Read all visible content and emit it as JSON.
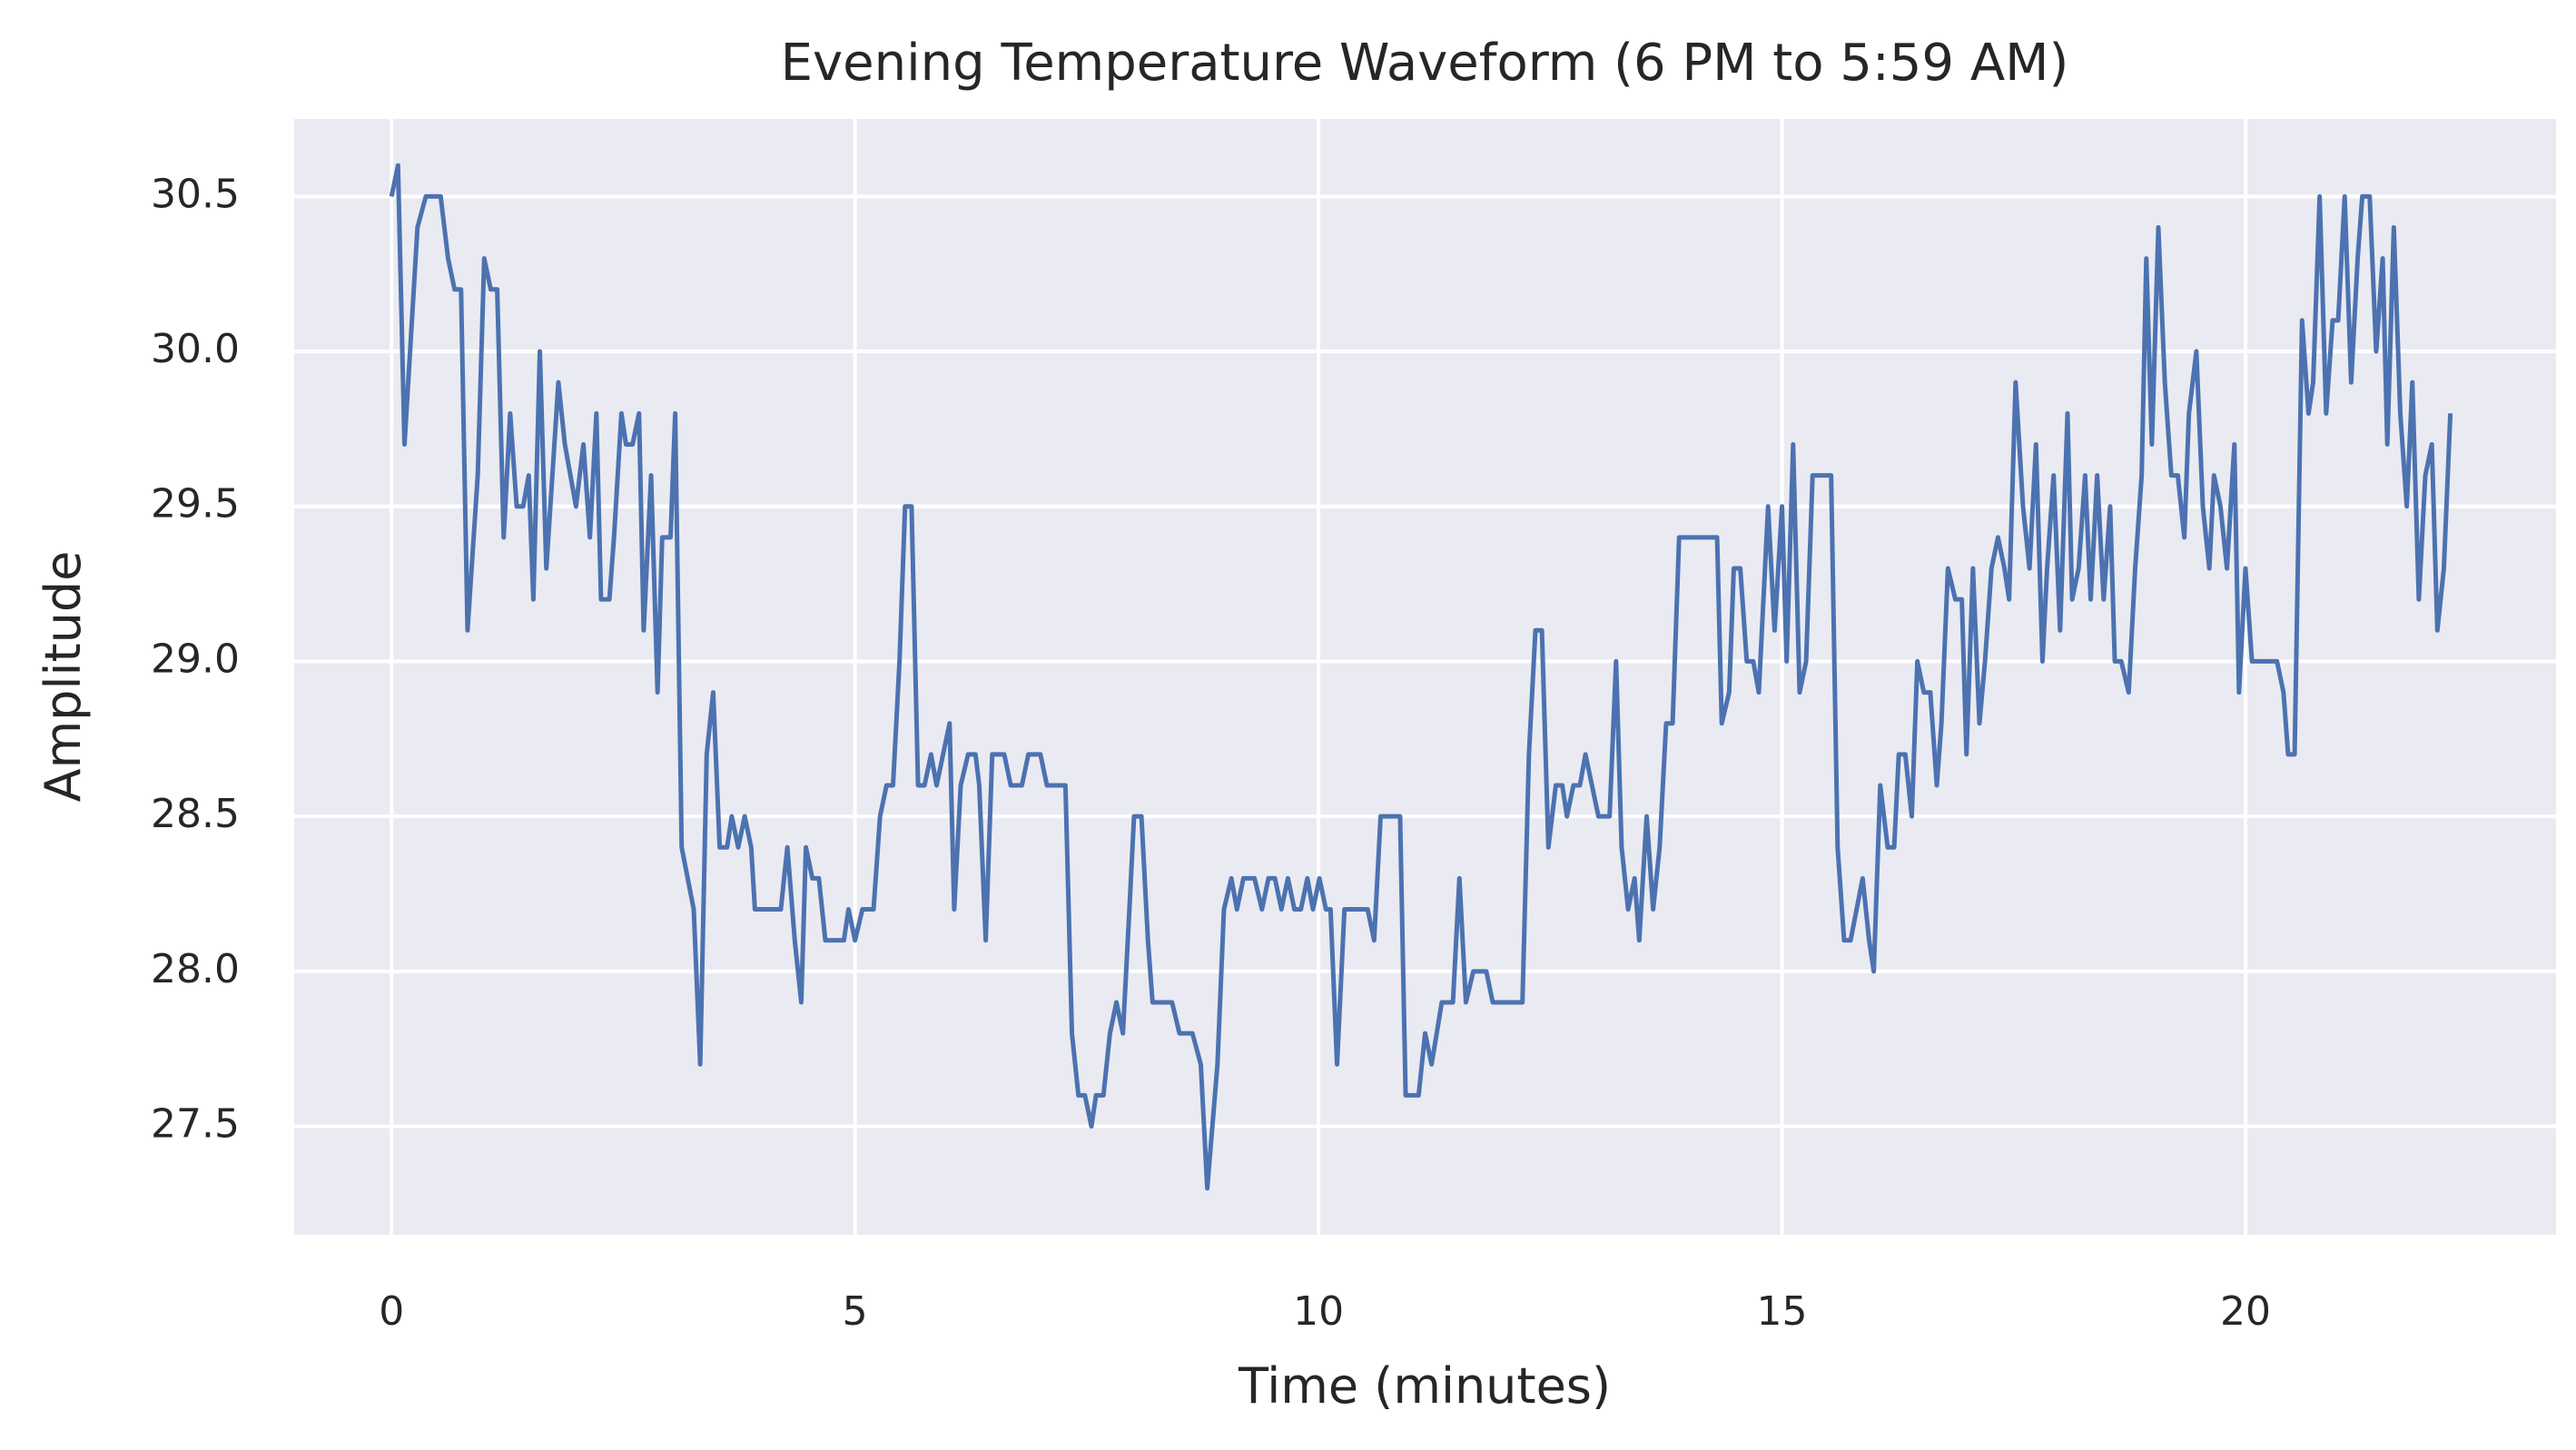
{
  "chart_data": {
    "type": "line",
    "title": "Evening Temperature Waveform (6 PM to 5:59 AM)",
    "xlabel": "Time (minutes)",
    "ylabel": "Amplitude",
    "xlim": [
      -1.05,
      23.35
    ],
    "ylim": [
      27.15,
      30.75
    ],
    "xticks": [
      0,
      5,
      10,
      15,
      20
    ],
    "yticks": [
      27.5,
      {
        "value": 28.0,
        "label": "28.0"
      },
      28.5,
      {
        "value": 29.0,
        "label": "29.0"
      },
      29.5,
      {
        "value": 30.0,
        "label": "30.0"
      },
      30.5
    ],
    "grid": true,
    "series": [
      {
        "color": "#4c72b0",
        "x": [
          0,
          0.07,
          0.14,
          0.28,
          0.37,
          0.53,
          0.61,
          0.68,
          0.75,
          0.82,
          0.93,
          1.0,
          1.07,
          1.14,
          1.21,
          1.28,
          1.35,
          1.42,
          1.48,
          1.53,
          1.6,
          1.67,
          1.8,
          1.87,
          1.99,
          2.07,
          2.14,
          2.21,
          2.26,
          2.35,
          2.4,
          2.48,
          2.53,
          2.6,
          2.67,
          2.72,
          2.8,
          2.87,
          2.92,
          3.01,
          3.06,
          3.13,
          3.26,
          3.33,
          3.4,
          3.47,
          3.54,
          3.62,
          3.67,
          3.74,
          3.81,
          3.88,
          3.92,
          4.06,
          4.2,
          4.27,
          4.35,
          4.42,
          4.47,
          4.54,
          4.61,
          4.68,
          4.88,
          4.93,
          5.0,
          5.08,
          5.2,
          5.27,
          5.34,
          5.41,
          5.48,
          5.54,
          5.61,
          5.68,
          5.75,
          5.82,
          5.88,
          5.95,
          6.02,
          6.07,
          6.14,
          6.22,
          6.3,
          6.34,
          6.41,
          6.48,
          6.61,
          6.68,
          6.8,
          6.87,
          7.0,
          7.07,
          7.27,
          7.34,
          7.41,
          7.48,
          7.55,
          7.6,
          7.68,
          7.75,
          7.82,
          7.89,
          7.96,
          8.01,
          8.09,
          8.16,
          8.21,
          8.42,
          8.5,
          8.64,
          8.73,
          8.8,
          8.91,
          8.98,
          9.06,
          9.12,
          9.19,
          9.31,
          9.39,
          9.46,
          9.53,
          9.6,
          9.67,
          9.74,
          9.81,
          9.88,
          9.94,
          10.01,
          10.08,
          10.13,
          10.2,
          10.28,
          10.53,
          10.6,
          10.67,
          10.88,
          10.94,
          11.08,
          11.15,
          11.22,
          11.33,
          11.45,
          11.52,
          11.59,
          11.67,
          11.81,
          11.88,
          12.2,
          12.27,
          12.34,
          12.41,
          12.48,
          12.56,
          12.63,
          12.68,
          12.75,
          12.82,
          12.88,
          12.95,
          13.02,
          13.14,
          13.21,
          13.27,
          13.34,
          13.41,
          13.46,
          13.54,
          13.61,
          13.68,
          13.75,
          13.82,
          13.89,
          14.3,
          14.35,
          14.43,
          14.48,
          14.55,
          14.62,
          14.69,
          14.75,
          14.85,
          14.92,
          15.0,
          15.05,
          15.12,
          15.19,
          15.26,
          15.33,
          15.53,
          15.6,
          15.67,
          15.74,
          15.87,
          15.94,
          15.99,
          16.06,
          16.14,
          16.21,
          16.26,
          16.33,
          16.4,
          16.46,
          16.53,
          16.6,
          16.67,
          16.72,
          16.79,
          16.87,
          16.94,
          16.99,
          17.06,
          17.13,
          17.19,
          17.26,
          17.33,
          17.4,
          17.45,
          17.52,
          17.6,
          17.67,
          17.74,
          17.81,
          17.86,
          17.93,
          18.0,
          18.08,
          18.13,
          18.2,
          18.27,
          18.33,
          18.4,
          18.47,
          18.54,
          18.59,
          18.66,
          18.74,
          18.81,
          18.88,
          18.93,
          18.99,
          19.06,
          19.13,
          19.2,
          19.27,
          19.34,
          19.39,
          19.47,
          19.54,
          19.61,
          19.66,
          19.73,
          19.8,
          19.88,
          19.93,
          20.0,
          20.07,
          20.34,
          20.41,
          20.46,
          20.53,
          20.61,
          20.68,
          20.73,
          20.8,
          20.87,
          20.94,
          21.0,
          21.07,
          21.14,
          21.21,
          21.26,
          21.34,
          21.41,
          21.48,
          21.53,
          21.6,
          21.67,
          21.74,
          21.8,
          21.87,
          21.94,
          22.01,
          22.07,
          22.14,
          22.21
        ],
        "values": [
          30.5,
          30.6,
          29.7,
          30.4,
          30.5,
          30.5,
          30.3,
          30.2,
          30.2,
          29.1,
          29.6,
          30.3,
          30.2,
          30.2,
          29.4,
          29.8,
          29.5,
          29.5,
          29.6,
          29.2,
          30.0,
          29.3,
          29.9,
          29.7,
          29.5,
          29.7,
          29.4,
          29.8,
          29.2,
          29.2,
          29.4,
          29.8,
          29.7,
          29.7,
          29.8,
          29.1,
          29.6,
          28.9,
          29.4,
          29.4,
          29.8,
          28.4,
          28.2,
          27.7,
          28.7,
          28.9,
          28.4,
          28.4,
          28.5,
          28.4,
          28.5,
          28.4,
          28.2,
          28.2,
          28.2,
          28.4,
          28.1,
          27.9,
          28.4,
          28.3,
          28.3,
          28.1,
          28.1,
          28.2,
          28.1,
          28.2,
          28.2,
          28.5,
          28.6,
          28.6,
          29.0,
          29.5,
          29.5,
          28.6,
          28.6,
          28.7,
          28.6,
          28.7,
          28.8,
          28.2,
          28.6,
          28.7,
          28.7,
          28.6,
          28.1,
          28.7,
          28.7,
          28.6,
          28.6,
          28.7,
          28.7,
          28.6,
          28.6,
          27.8,
          27.6,
          27.6,
          27.5,
          27.6,
          27.6,
          27.8,
          27.9,
          27.8,
          28.2,
          28.5,
          28.5,
          28.1,
          27.9,
          27.9,
          27.8,
          27.8,
          27.7,
          27.3,
          27.7,
          28.2,
          28.3,
          28.2,
          28.3,
          28.3,
          28.2,
          28.3,
          28.3,
          28.2,
          28.3,
          28.2,
          28.2,
          28.3,
          28.2,
          28.3,
          28.2,
          28.2,
          27.7,
          28.2,
          28.2,
          28.1,
          28.5,
          28.5,
          27.6,
          27.6,
          27.8,
          27.7,
          27.9,
          27.9,
          28.3,
          27.9,
          28.0,
          28.0,
          27.9,
          27.9,
          28.7,
          29.1,
          29.1,
          28.4,
          28.6,
          28.6,
          28.5,
          28.6,
          28.6,
          28.7,
          28.6,
          28.5,
          28.5,
          29.0,
          28.4,
          28.2,
          28.3,
          28.1,
          28.5,
          28.2,
          28.4,
          28.8,
          28.8,
          29.4,
          29.4,
          28.8,
          28.9,
          29.3,
          29.3,
          29.0,
          29.0,
          28.9,
          29.5,
          29.1,
          29.5,
          29.0,
          29.7,
          28.9,
          29.0,
          29.6,
          29.6,
          28.4,
          28.1,
          28.1,
          28.3,
          28.1,
          28.0,
          28.6,
          28.4,
          28.4,
          28.7,
          28.7,
          28.5,
          29.0,
          28.9,
          28.9,
          28.6,
          28.8,
          29.3,
          29.2,
          29.2,
          28.7,
          29.3,
          28.8,
          29.0,
          29.3,
          29.4,
          29.3,
          29.2,
          29.9,
          29.5,
          29.3,
          29.7,
          29.0,
          29.3,
          29.6,
          29.1,
          29.8,
          29.2,
          29.3,
          29.6,
          29.2,
          29.6,
          29.2,
          29.5,
          29.0,
          29.0,
          28.9,
          29.3,
          29.6,
          30.3,
          29.7,
          30.4,
          29.9,
          29.6,
          29.6,
          29.4,
          29.8,
          30.0,
          29.5,
          29.3,
          29.6,
          29.5,
          29.3,
          29.7,
          28.9,
          29.3,
          29.0,
          29.0,
          28.9,
          28.7,
          28.7,
          30.1,
          29.8,
          29.9,
          30.5,
          29.8,
          30.1,
          30.1,
          30.5,
          29.9,
          30.3,
          30.5,
          30.5,
          30.0,
          30.3,
          29.7,
          30.4,
          29.8,
          29.5,
          29.9,
          29.2,
          29.6,
          29.7,
          29.1,
          29.3,
          29.8
        ]
      }
    ]
  }
}
